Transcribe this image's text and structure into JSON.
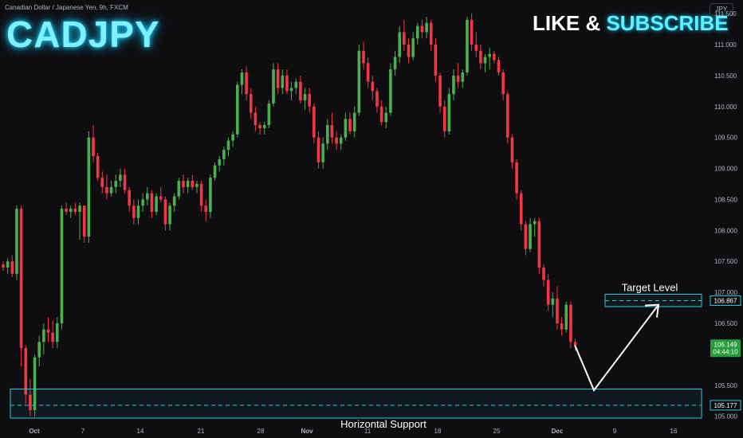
{
  "header": {
    "symbol_description": "Canadian Dollar / Japanese Yen, 9h, FXCM",
    "big_title": "CADJPY",
    "cta_like": "LIKE &",
    "cta_subscribe": "SUBSCRIBE",
    "currency": "JPY"
  },
  "colors": {
    "background": "#0e0e11",
    "up_candle": "#4caf50",
    "down_candle": "#f23645",
    "zone": "#2fc8e0",
    "last_price_tag": "#2a9a3f"
  },
  "chart_data": {
    "type": "candlestick",
    "y_axis": {
      "ylim": [
        104.88,
        111.72
      ],
      "ticks": [
        "111.500",
        "111.000",
        "110.500",
        "110.000",
        "109.500",
        "109.000",
        "108.500",
        "108.000",
        "107.500",
        "107.000",
        "106.500",
        "106.000",
        "105.500",
        "105.000"
      ]
    },
    "x_axis": {
      "ticks": [
        "Oct",
        "7",
        "14",
        "21",
        "28",
        "Nov",
        "11",
        "18",
        "25",
        "Dec",
        "9",
        "16"
      ]
    },
    "candles": [
      [
        107.45,
        107.5,
        107.35,
        107.4
      ],
      [
        107.4,
        107.55,
        107.3,
        107.5
      ],
      [
        107.5,
        107.6,
        107.25,
        107.3
      ],
      [
        107.3,
        108.4,
        107.2,
        108.35
      ],
      [
        108.35,
        108.4,
        105.8,
        106.1
      ],
      [
        106.1,
        106.15,
        105.2,
        105.35
      ],
      [
        105.35,
        105.6,
        105.0,
        105.1
      ],
      [
        105.1,
        106.0,
        105.0,
        105.95
      ],
      [
        105.95,
        106.3,
        105.8,
        106.2
      ],
      [
        106.2,
        106.5,
        106.0,
        106.4
      ],
      [
        106.4,
        106.6,
        106.2,
        106.35
      ],
      [
        106.35,
        106.55,
        106.1,
        106.2
      ],
      [
        106.2,
        106.6,
        106.1,
        106.5
      ],
      [
        106.5,
        108.4,
        106.4,
        108.35
      ],
      [
        108.35,
        108.45,
        108.25,
        108.3
      ],
      [
        108.3,
        108.4,
        108.2,
        108.35
      ],
      [
        108.35,
        108.45,
        108.25,
        108.3
      ],
      [
        108.3,
        108.45,
        107.85,
        108.4
      ],
      [
        108.4,
        108.4,
        107.8,
        107.9
      ],
      [
        107.9,
        109.6,
        107.8,
        109.5
      ],
      [
        109.5,
        109.7,
        109.1,
        109.2
      ],
      [
        109.2,
        109.25,
        108.8,
        108.85
      ],
      [
        108.85,
        108.95,
        108.6,
        108.7
      ],
      [
        108.7,
        108.9,
        108.5,
        108.6
      ],
      [
        108.6,
        108.8,
        108.55,
        108.7
      ],
      [
        108.7,
        108.9,
        108.6,
        108.8
      ],
      [
        108.8,
        109.0,
        108.7,
        108.9
      ],
      [
        108.9,
        109.0,
        108.6,
        108.65
      ],
      [
        108.65,
        108.7,
        108.3,
        108.4
      ],
      [
        108.4,
        108.5,
        108.1,
        108.2
      ],
      [
        108.2,
        108.5,
        108.1,
        108.4
      ],
      [
        108.4,
        108.6,
        108.3,
        108.5
      ],
      [
        108.5,
        108.7,
        108.4,
        108.6
      ],
      [
        108.6,
        108.65,
        108.2,
        108.3
      ],
      [
        108.3,
        108.6,
        108.25,
        108.55
      ],
      [
        108.55,
        108.7,
        108.45,
        108.5
      ],
      [
        108.5,
        108.55,
        108.0,
        108.1
      ],
      [
        108.1,
        108.45,
        108.0,
        108.4
      ],
      [
        108.4,
        108.6,
        108.3,
        108.55
      ],
      [
        108.55,
        108.85,
        108.5,
        108.8
      ],
      [
        108.8,
        108.9,
        108.6,
        108.7
      ],
      [
        108.7,
        108.85,
        108.6,
        108.8
      ],
      [
        108.8,
        108.9,
        108.65,
        108.7
      ],
      [
        108.7,
        108.8,
        108.6,
        108.75
      ],
      [
        108.75,
        108.8,
        108.3,
        108.4
      ],
      [
        108.4,
        108.5,
        108.15,
        108.3
      ],
      [
        108.3,
        108.9,
        108.2,
        108.85
      ],
      [
        108.85,
        109.1,
        108.8,
        109.05
      ],
      [
        109.05,
        109.2,
        108.95,
        109.15
      ],
      [
        109.15,
        109.35,
        109.05,
        109.3
      ],
      [
        109.3,
        109.5,
        109.2,
        109.45
      ],
      [
        109.45,
        109.6,
        109.35,
        109.55
      ],
      [
        109.55,
        110.4,
        109.5,
        110.35
      ],
      [
        110.35,
        110.6,
        110.2,
        110.55
      ],
      [
        110.55,
        110.65,
        110.1,
        110.2
      ],
      [
        110.2,
        110.3,
        109.8,
        109.9
      ],
      [
        109.9,
        110.0,
        109.6,
        109.7
      ],
      [
        109.7,
        109.75,
        109.55,
        109.65
      ],
      [
        109.65,
        109.75,
        109.55,
        109.7
      ],
      [
        109.7,
        110.1,
        109.65,
        110.05
      ],
      [
        110.05,
        110.7,
        110.0,
        110.6
      ],
      [
        110.6,
        110.7,
        110.2,
        110.3
      ],
      [
        110.3,
        110.6,
        110.2,
        110.5
      ],
      [
        110.5,
        110.6,
        110.2,
        110.25
      ],
      [
        110.25,
        110.4,
        110.1,
        110.3
      ],
      [
        110.3,
        110.45,
        110.2,
        110.4
      ],
      [
        110.4,
        110.5,
        110.05,
        110.1
      ],
      [
        110.1,
        110.3,
        109.95,
        110.2
      ],
      [
        110.2,
        110.3,
        109.9,
        110.0
      ],
      [
        110.0,
        110.05,
        109.4,
        109.5
      ],
      [
        109.5,
        109.6,
        109.0,
        109.1
      ],
      [
        109.1,
        109.5,
        109.0,
        109.4
      ],
      [
        109.4,
        109.8,
        109.3,
        109.7
      ],
      [
        109.7,
        109.9,
        109.4,
        109.5
      ],
      [
        109.5,
        109.6,
        109.3,
        109.4
      ],
      [
        109.4,
        109.55,
        109.3,
        109.5
      ],
      [
        109.5,
        109.9,
        109.45,
        109.8
      ],
      [
        109.8,
        109.9,
        109.55,
        109.6
      ],
      [
        109.6,
        110.0,
        109.5,
        109.9
      ],
      [
        109.9,
        111.0,
        109.85,
        110.9
      ],
      [
        110.9,
        111.05,
        110.6,
        110.7
      ],
      [
        110.7,
        110.8,
        110.3,
        110.4
      ],
      [
        110.4,
        110.5,
        110.1,
        110.25
      ],
      [
        110.25,
        110.3,
        109.9,
        110.0
      ],
      [
        110.0,
        110.1,
        109.7,
        109.75
      ],
      [
        109.75,
        110.0,
        109.65,
        109.9
      ],
      [
        109.9,
        110.7,
        109.85,
        110.6
      ],
      [
        110.6,
        110.9,
        110.5,
        110.8
      ],
      [
        110.8,
        111.3,
        110.7,
        111.2
      ],
      [
        111.2,
        111.4,
        110.9,
        111.0
      ],
      [
        111.0,
        111.1,
        110.7,
        110.8
      ],
      [
        110.8,
        111.2,
        110.75,
        111.1
      ],
      [
        111.1,
        111.35,
        111.0,
        111.3
      ],
      [
        111.3,
        111.4,
        111.1,
        111.2
      ],
      [
        111.2,
        111.45,
        111.1,
        111.35
      ],
      [
        111.35,
        111.4,
        110.9,
        111.0
      ],
      [
        111.0,
        111.1,
        110.4,
        110.5
      ],
      [
        110.5,
        110.55,
        109.9,
        110.0
      ],
      [
        110.0,
        110.1,
        109.5,
        109.6
      ],
      [
        109.6,
        110.3,
        109.55,
        110.2
      ],
      [
        110.2,
        110.6,
        110.1,
        110.5
      ],
      [
        110.5,
        110.7,
        110.3,
        110.4
      ],
      [
        110.4,
        110.6,
        110.3,
        110.55
      ],
      [
        110.55,
        111.45,
        110.5,
        111.4
      ],
      [
        111.4,
        111.5,
        110.9,
        111.0
      ],
      [
        111.0,
        111.2,
        110.8,
        110.9
      ],
      [
        110.9,
        111.0,
        110.6,
        110.7
      ],
      [
        110.7,
        110.85,
        110.55,
        110.8
      ],
      [
        110.8,
        110.95,
        110.6,
        110.85
      ],
      [
        110.85,
        110.9,
        110.7,
        110.75
      ],
      [
        110.75,
        110.8,
        110.5,
        110.55
      ],
      [
        110.55,
        110.6,
        110.1,
        110.2
      ],
      [
        110.2,
        110.25,
        109.4,
        109.5
      ],
      [
        109.5,
        109.55,
        109.0,
        109.1
      ],
      [
        109.1,
        109.15,
        108.5,
        108.6
      ],
      [
        108.6,
        108.65,
        108.0,
        108.1
      ],
      [
        108.1,
        108.15,
        107.6,
        107.7
      ],
      [
        107.7,
        108.2,
        107.65,
        108.1
      ],
      [
        108.1,
        108.2,
        107.9,
        108.15
      ],
      [
        108.15,
        108.2,
        107.3,
        107.4
      ],
      [
        107.4,
        107.45,
        107.1,
        107.2
      ],
      [
        107.2,
        107.3,
        106.7,
        106.8
      ],
      [
        106.8,
        107.0,
        106.6,
        106.9
      ],
      [
        106.9,
        107.1,
        106.4,
        106.5
      ],
      [
        106.5,
        106.6,
        106.3,
        106.4
      ],
      [
        106.4,
        106.85,
        106.35,
        106.8
      ],
      [
        106.8,
        106.85,
        106.1,
        106.2
      ],
      [
        106.2,
        106.25,
        106.05,
        106.149
      ]
    ],
    "zones": [
      {
        "label": "Target Level",
        "top": 106.97,
        "bottom": 106.77,
        "level": 106.867,
        "level_label": "106.867"
      },
      {
        "label": "Horizontal Support",
        "top": 105.44,
        "bottom": 104.97,
        "level": 105.177,
        "level_label": "105.177"
      }
    ],
    "projection": [
      [
        106.149,
        0
      ],
      [
        105.42,
        1
      ],
      [
        106.8,
        2
      ]
    ],
    "last_price": {
      "value": 106.149,
      "value_label": "106.149",
      "countdown": "04:44:10"
    }
  }
}
